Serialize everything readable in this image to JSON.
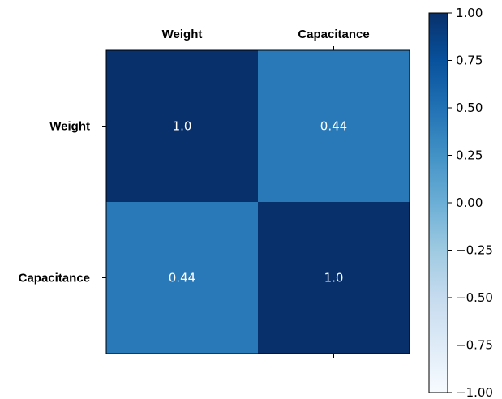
{
  "chart_data": {
    "type": "heatmap",
    "title": "",
    "row_labels": [
      "Weight",
      "Capacitance"
    ],
    "col_labels": [
      "Weight",
      "Capacitance"
    ],
    "values": [
      [
        1.0,
        0.44
      ],
      [
        0.44,
        1.0
      ]
    ],
    "cell_labels": [
      [
        "1.0",
        "0.44"
      ],
      [
        "0.44",
        "1.0"
      ]
    ],
    "x_tick_position": "top",
    "colorbar": {
      "range": [
        -1.0,
        1.0
      ],
      "ticks": [
        1.0,
        0.75,
        0.5,
        0.25,
        0.0,
        -0.25,
        -0.5,
        -0.75,
        -1.0
      ],
      "tick_labels": [
        "1.00",
        "0.75",
        "0.50",
        "0.25",
        "0.00",
        "−0.25",
        "−0.50",
        "−0.75",
        "−1.00"
      ],
      "colormap": "Blues"
    },
    "colors": {
      "high": "#08306b",
      "mid_0.44": "#3c85c1",
      "low": "#f7fbff"
    },
    "grid": false,
    "legend": "colorbar-right"
  }
}
